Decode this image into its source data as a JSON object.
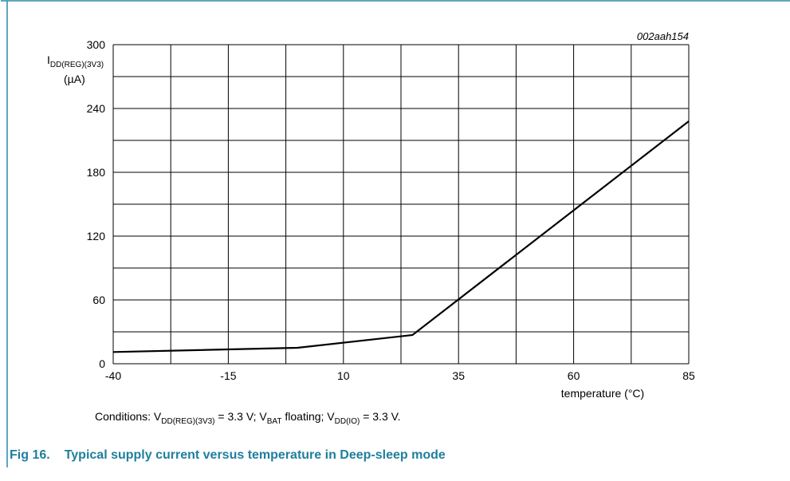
{
  "chart_data": {
    "type": "line",
    "chart_id": "002aah154",
    "y_label": {
      "main": "I",
      "sub": "DD(REG)(3V3)",
      "unit": "(µA)"
    },
    "x_label": "temperature (°C)",
    "x": [
      -40,
      0,
      25,
      85
    ],
    "series": [
      {
        "color": "#000000",
        "values": [
          11,
          15,
          27,
          228
        ]
      }
    ],
    "xlim": [
      -40,
      85
    ],
    "xticks": [
      -40,
      -15,
      10,
      35,
      60,
      85
    ],
    "xgrid": [
      -40,
      -27.5,
      -15,
      -2.5,
      10,
      22.5,
      35,
      47.5,
      60,
      72.5,
      85
    ],
    "ylim": [
      0,
      300
    ],
    "yticks": [
      0,
      60,
      120,
      180,
      240,
      300
    ],
    "ygrid": [
      0,
      30,
      60,
      90,
      120,
      150,
      180,
      210,
      240,
      270,
      300
    ],
    "grid": true,
    "conditions": [
      "Conditions: V",
      "DD(REG)(3V3)",
      " = 3.3 V; V",
      "BAT",
      " floating; V",
      "DD(IO)",
      " = 3.3 V."
    ],
    "caption": {
      "number": "Fig 16.",
      "text": "Typical supply current versus temperature in Deep-sleep mode"
    }
  }
}
